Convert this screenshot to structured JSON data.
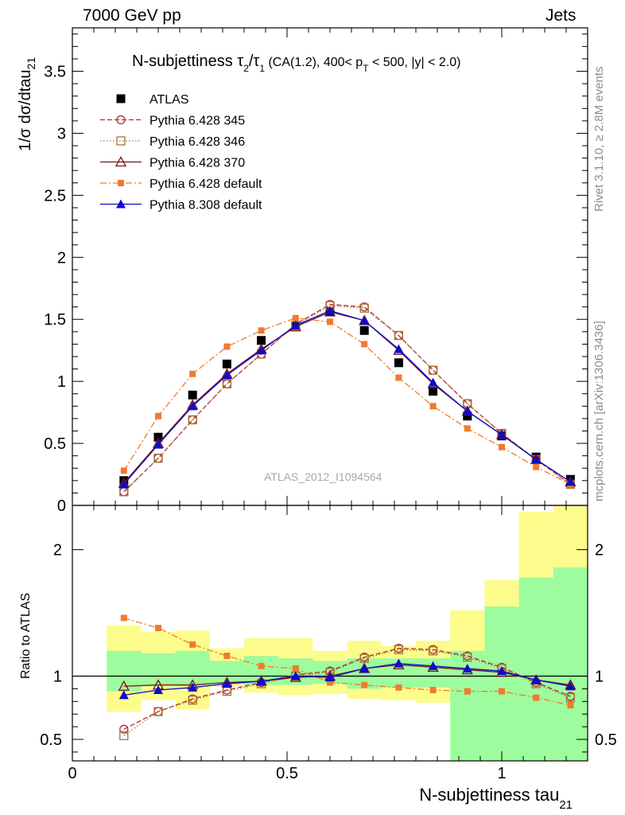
{
  "header": {
    "energy_label": "7000 GeV pp",
    "category_label": "Jets",
    "rivet_label": "Rivet 3.1.10, ≥ 2.8M events",
    "mcplots_label": "mcplots.cern.ch [arXiv:1306.3436]",
    "analysis_label": "ATLAS_2012_I1094564"
  },
  "chart_data": [
    {
      "type": "scatter",
      "title": "N-subjettiness τ₂/τ₁ (CA(1.2), 400< p_T < 500, |y| < 2.0)",
      "ylabel": "1/σ dσ/dtau_21",
      "xlabel": "",
      "xlim": [
        0,
        1.2
      ],
      "ylim": [
        0,
        3.85
      ],
      "yticks": [
        "0",
        "0.5",
        "1",
        "1.5",
        "2",
        "2.5",
        "3",
        "3.5"
      ],
      "legend_position": "top-left",
      "x": [
        0.12,
        0.2,
        0.28,
        0.36,
        0.44,
        0.52,
        0.6,
        0.68,
        0.76,
        0.84,
        0.92,
        1.0,
        1.08,
        1.16
      ],
      "series": [
        {
          "name": "ATLAS",
          "color": "#000000",
          "marker": "square",
          "line": "none",
          "values": [
            0.2,
            0.55,
            0.89,
            1.14,
            1.33,
            1.45,
            1.56,
            1.41,
            1.15,
            0.92,
            0.72,
            0.56,
            0.39,
            0.21
          ]
        },
        {
          "name": "Pythia 6.428 345",
          "color": "#b22b2b",
          "marker": "circle-open",
          "line": "dashed",
          "values": [
            0.11,
            0.38,
            0.69,
            0.98,
            1.22,
            1.46,
            1.62,
            1.6,
            1.37,
            1.09,
            0.82,
            0.58,
            0.37,
            0.17
          ]
        },
        {
          "name": "Pythia 6.428 346",
          "color": "#a5743a",
          "marker": "square-open",
          "line": "dotted",
          "values": [
            0.11,
            0.38,
            0.69,
            0.98,
            1.22,
            1.45,
            1.61,
            1.59,
            1.37,
            1.09,
            0.82,
            0.58,
            0.37,
            0.17
          ]
        },
        {
          "name": "Pythia 6.428 370",
          "color": "#7f0f0f",
          "marker": "triangle-open",
          "line": "solid",
          "values": [
            0.18,
            0.5,
            0.81,
            1.06,
            1.26,
            1.44,
            1.56,
            1.49,
            1.25,
            0.98,
            0.76,
            0.57,
            0.37,
            0.19
          ]
        },
        {
          "name": "Pythia 6.428 default",
          "color": "#f07a30",
          "marker": "square-small",
          "line": "dashdot",
          "values": [
            0.28,
            0.72,
            1.06,
            1.28,
            1.41,
            1.51,
            1.48,
            1.3,
            1.03,
            0.8,
            0.62,
            0.47,
            0.31,
            0.17
          ]
        },
        {
          "name": "Pythia 8.308 default",
          "color": "#0c0ccc",
          "marker": "triangle-filled",
          "line": "solid",
          "values": [
            0.17,
            0.49,
            0.8,
            1.05,
            1.25,
            1.45,
            1.57,
            1.49,
            1.26,
            0.99,
            0.76,
            0.57,
            0.37,
            0.19
          ]
        }
      ]
    },
    {
      "type": "line",
      "title": "",
      "ylabel": "Ratio to ATLAS",
      "xlabel": "N-subjettiness tau_21",
      "xlim": [
        0,
        1.2
      ],
      "ylim": [
        0.33,
        2.35
      ],
      "yticks": [
        "0.5",
        "1",
        "2"
      ],
      "xticks": [
        "0",
        "0.5",
        "1"
      ],
      "x": [
        0.12,
        0.2,
        0.28,
        0.36,
        0.44,
        0.52,
        0.6,
        0.68,
        0.76,
        0.84,
        0.92,
        1.0,
        1.08,
        1.16
      ],
      "uncertainty_bins": {
        "edges": [
          0.08,
          0.16,
          0.24,
          0.32,
          0.4,
          0.48,
          0.56,
          0.64,
          0.72,
          0.8,
          0.88,
          0.96,
          1.04,
          1.12,
          1.2
        ],
        "stat_low": [
          0.88,
          0.92,
          0.92,
          0.94,
          0.93,
          0.93,
          0.94,
          0.9,
          0.91,
          0.91,
          0.0,
          0.0,
          0.0,
          0.0
        ],
        "stat_high": [
          1.2,
          1.18,
          1.2,
          1.12,
          1.16,
          1.14,
          1.12,
          1.14,
          1.14,
          1.14,
          1.2,
          1.55,
          1.78,
          1.86
        ],
        "total_low": [
          0.72,
          0.81,
          0.74,
          0.92,
          0.87,
          0.85,
          0.86,
          0.82,
          0.81,
          0.79,
          0.7,
          0.0,
          0.0,
          0.0
        ],
        "total_high": [
          1.4,
          1.35,
          1.36,
          1.22,
          1.3,
          1.3,
          1.2,
          1.28,
          1.24,
          1.28,
          1.52,
          1.76,
          2.3,
          2.35
        ],
        "stat_color": "#9dfc9d",
        "total_color": "#fcfc8c"
      },
      "series": [
        {
          "name": "Pythia 6.428 345",
          "color": "#b22b2b",
          "marker": "circle-open",
          "line": "dashed",
          "values": [
            0.58,
            0.72,
            0.82,
            0.89,
            0.95,
            1.01,
            1.04,
            1.15,
            1.22,
            1.21,
            1.16,
            1.07,
            0.95,
            0.84
          ]
        },
        {
          "name": "Pythia 6.428 346",
          "color": "#a5743a",
          "marker": "square-open",
          "line": "dotted",
          "values": [
            0.53,
            0.72,
            0.81,
            0.88,
            0.94,
            1.0,
            1.03,
            1.14,
            1.21,
            1.2,
            1.15,
            1.06,
            0.94,
            0.83
          ]
        },
        {
          "name": "Pythia 6.428 370",
          "color": "#7f0f0f",
          "marker": "triangle-open",
          "line": "solid",
          "values": [
            0.92,
            0.93,
            0.93,
            0.95,
            0.96,
            0.99,
            1.0,
            1.06,
            1.09,
            1.07,
            1.05,
            1.03,
            0.97,
            0.93
          ]
        },
        {
          "name": "Pythia 6.428 default",
          "color": "#f07a30",
          "marker": "square-small",
          "line": "dashdot",
          "values": [
            1.46,
            1.38,
            1.25,
            1.16,
            1.08,
            1.06,
            0.95,
            0.93,
            0.91,
            0.89,
            0.88,
            0.88,
            0.83,
            0.77
          ]
        },
        {
          "name": "Pythia 8.308 default",
          "color": "#0c0ccc",
          "marker": "triangle-filled",
          "line": "solid",
          "values": [
            0.85,
            0.89,
            0.91,
            0.94,
            0.96,
            1.0,
            0.99,
            1.06,
            1.1,
            1.08,
            1.06,
            1.04,
            0.97,
            0.92
          ]
        }
      ]
    }
  ]
}
